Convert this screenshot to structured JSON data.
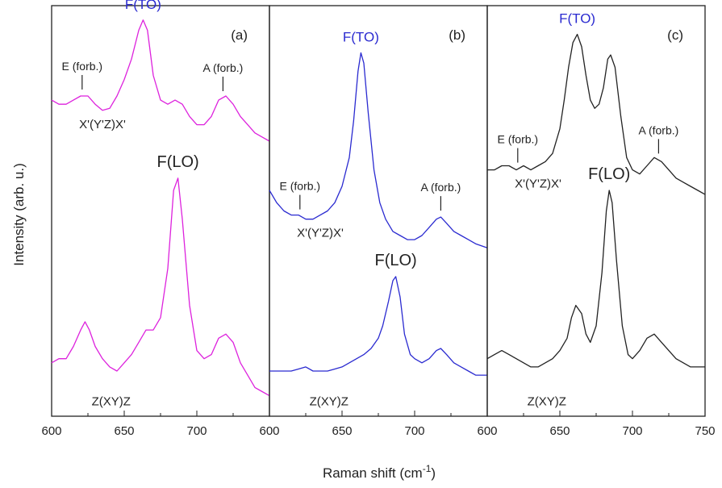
{
  "chart_data": {
    "type": "line",
    "ylabel": "Intensity (arb. u.)",
    "xlabel_main": "Raman shift (cm",
    "xlabel_sup": "-1",
    "xlabel_tail": ")",
    "ylim": [
      0,
      1
    ],
    "y_ticks_shown": false,
    "grid": false,
    "panels": [
      {
        "label": "(a)",
        "xlim": [
          600,
          750
        ],
        "x_ticks": [
          "600",
          "650",
          "700"
        ],
        "color": "#dd22dd",
        "top_geometry": "X'(Y'Z)X'",
        "bottom_geometry": "Z(XY)Z",
        "top_peak": "F(TO)",
        "bottom_peak": "F(LO)",
        "ann_e": "E (forb.)",
        "ann_a": "A (forb.)",
        "series": [
          {
            "x": [
              600,
              605,
              610,
              615,
              620,
              625,
              630,
              635,
              640,
              645,
              650,
              655,
              660,
              663,
              666,
              670,
              675,
              680,
              685,
              690,
              695,
              700,
              705,
              710,
              715,
              720,
              725,
              730,
              735,
              740,
              745,
              750
            ],
            "y": [
              0.77,
              0.76,
              0.76,
              0.77,
              0.78,
              0.78,
              0.76,
              0.745,
              0.75,
              0.78,
              0.82,
              0.87,
              0.94,
              0.965,
              0.94,
              0.83,
              0.77,
              0.76,
              0.77,
              0.76,
              0.73,
              0.71,
              0.71,
              0.73,
              0.77,
              0.78,
              0.76,
              0.73,
              0.71,
              0.69,
              0.68,
              0.67
            ]
          },
          {
            "x": [
              600,
              605,
              610,
              615,
              620,
              623,
              626,
              630,
              635,
              640,
              645,
              650,
              655,
              660,
              665,
              670,
              675,
              680,
              684,
              687,
              690,
              695,
              700,
              705,
              710,
              715,
              720,
              725,
              730,
              735,
              740,
              745,
              750
            ],
            "y": [
              0.13,
              0.14,
              0.14,
              0.17,
              0.21,
              0.23,
              0.21,
              0.17,
              0.14,
              0.12,
              0.11,
              0.13,
              0.15,
              0.18,
              0.21,
              0.21,
              0.24,
              0.36,
              0.55,
              0.58,
              0.48,
              0.27,
              0.16,
              0.14,
              0.15,
              0.19,
              0.2,
              0.18,
              0.13,
              0.1,
              0.07,
              0.06,
              0.05
            ]
          }
        ]
      },
      {
        "label": "(b)",
        "xlim": [
          600,
          750
        ],
        "x_ticks": [
          "600",
          "650",
          "700"
        ],
        "color": "#2a2ad0",
        "top_geometry": "X'(Y'Z)X'",
        "bottom_geometry": "Z(XY)Z",
        "top_peak": "F(TO)",
        "bottom_peak": "F(LO)",
        "ann_e": "E (forb.)",
        "ann_a": "A (forb.)",
        "series": [
          {
            "x": [
              600,
              605,
              610,
              615,
              620,
              625,
              630,
              635,
              640,
              645,
              650,
              655,
              658,
              661,
              663,
              665,
              668,
              672,
              676,
              680,
              685,
              690,
              695,
              700,
              705,
              710,
              715,
              718,
              722,
              727,
              732,
              737,
              742,
              750
            ],
            "y": [
              0.55,
              0.52,
              0.5,
              0.49,
              0.49,
              0.48,
              0.48,
              0.49,
              0.5,
              0.52,
              0.56,
              0.63,
              0.72,
              0.84,
              0.885,
              0.86,
              0.74,
              0.6,
              0.52,
              0.48,
              0.45,
              0.44,
              0.43,
              0.43,
              0.44,
              0.46,
              0.48,
              0.485,
              0.47,
              0.45,
              0.44,
              0.43,
              0.42,
              0.41
            ]
          },
          {
            "x": [
              600,
              605,
              610,
              615,
              620,
              625,
              630,
              635,
              640,
              645,
              650,
              655,
              660,
              665,
              670,
              675,
              678,
              682,
              685,
              687,
              690,
              693,
              697,
              700,
              705,
              710,
              715,
              718,
              722,
              727,
              732,
              737,
              742,
              750
            ],
            "y": [
              0.11,
              0.11,
              0.11,
              0.11,
              0.115,
              0.12,
              0.11,
              0.11,
              0.11,
              0.115,
              0.12,
              0.13,
              0.14,
              0.15,
              0.165,
              0.19,
              0.22,
              0.28,
              0.33,
              0.34,
              0.29,
              0.2,
              0.15,
              0.14,
              0.13,
              0.14,
              0.16,
              0.165,
              0.15,
              0.13,
              0.12,
              0.11,
              0.1,
              0.1
            ]
          }
        ]
      },
      {
        "label": "(c)",
        "xlim": [
          600,
          750
        ],
        "x_ticks": [
          "600",
          "650",
          "700",
          "750"
        ],
        "color": "#222222",
        "top_geometry": "X'(Y'Z)X'",
        "bottom_geometry": "Z(XY)Z",
        "top_peak": "F(TO)",
        "bottom_peak": "F(LO)",
        "ann_e": "E (forb.)",
        "ann_a": "A (forb.)",
        "series": [
          {
            "x": [
              600,
              605,
              610,
              615,
              620,
              625,
              630,
              635,
              640,
              645,
              650,
              653,
              656,
              659,
              662,
              665,
              668,
              671,
              674,
              677,
              680,
              683,
              685,
              688,
              692,
              696,
              700,
              705,
              710,
              715,
              720,
              725,
              730,
              735,
              740,
              745,
              750
            ],
            "y": [
              0.6,
              0.6,
              0.61,
              0.61,
              0.6,
              0.61,
              0.6,
              0.61,
              0.62,
              0.64,
              0.7,
              0.77,
              0.85,
              0.91,
              0.93,
              0.9,
              0.83,
              0.77,
              0.75,
              0.76,
              0.8,
              0.87,
              0.88,
              0.85,
              0.73,
              0.63,
              0.6,
              0.59,
              0.61,
              0.63,
              0.62,
              0.6,
              0.58,
              0.57,
              0.56,
              0.55,
              0.54
            ]
          },
          {
            "x": [
              600,
              605,
              610,
              615,
              620,
              625,
              630,
              635,
              640,
              645,
              650,
              655,
              658,
              661,
              665,
              668,
              671,
              675,
              679,
              682,
              684,
              686,
              689,
              693,
              697,
              700,
              705,
              710,
              715,
              720,
              725,
              730,
              735,
              740,
              745,
              750
            ],
            "y": [
              0.14,
              0.15,
              0.16,
              0.15,
              0.14,
              0.13,
              0.12,
              0.12,
              0.13,
              0.14,
              0.16,
              0.19,
              0.24,
              0.27,
              0.25,
              0.2,
              0.18,
              0.22,
              0.35,
              0.5,
              0.55,
              0.52,
              0.38,
              0.22,
              0.15,
              0.14,
              0.16,
              0.19,
              0.2,
              0.18,
              0.16,
              0.14,
              0.13,
              0.12,
              0.12,
              0.12
            ]
          }
        ]
      }
    ]
  }
}
